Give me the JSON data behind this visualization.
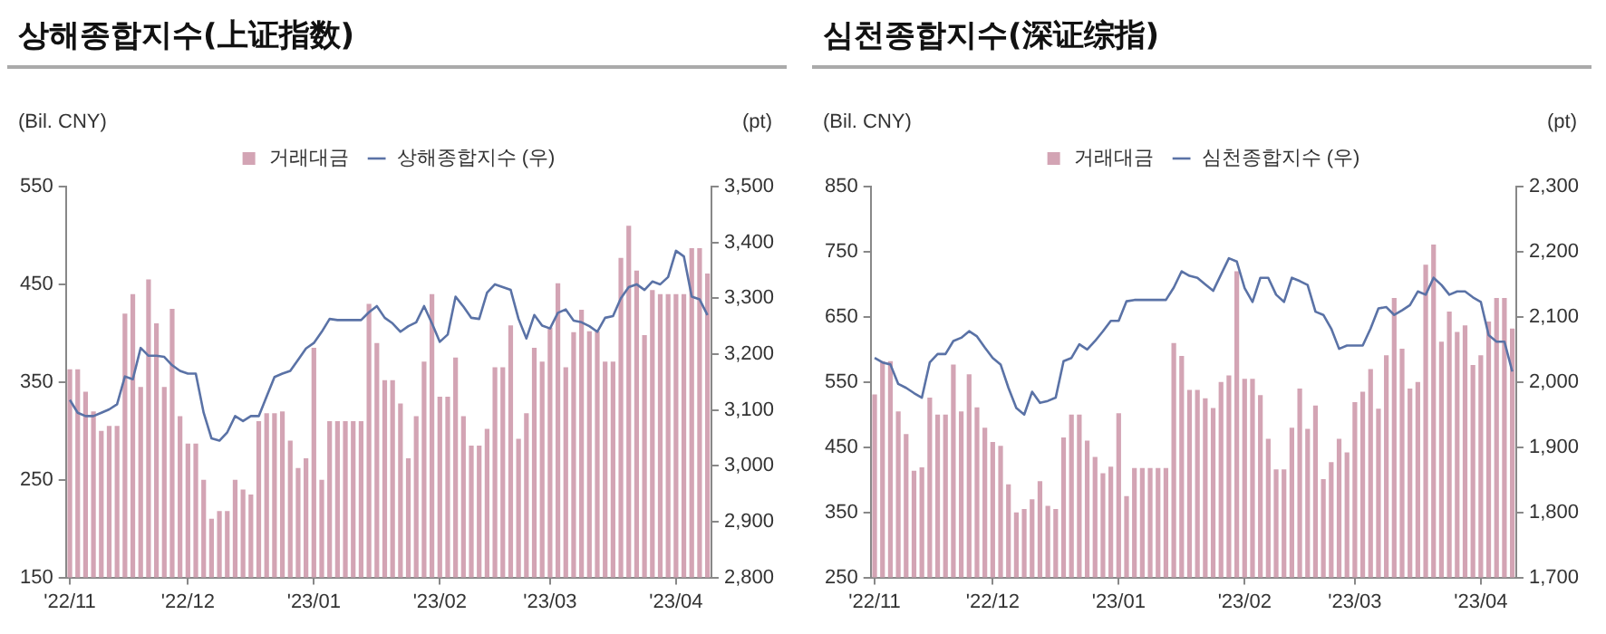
{
  "chart_data": [
    {
      "type": "bar",
      "title": "상해종합지수(上证指数)",
      "ylabel": "(Bil. CNY)",
      "y2label": "(pt)",
      "legend": "top",
      "grid": false,
      "categories": [
        "'22/11",
        null,
        null,
        null,
        null,
        null,
        null,
        null,
        null,
        null,
        null,
        null,
        null,
        null,
        null,
        "'22/12",
        null,
        null,
        null,
        null,
        null,
        null,
        null,
        null,
        null,
        null,
        null,
        null,
        null,
        null,
        null,
        "'23/01",
        null,
        null,
        null,
        null,
        null,
        null,
        null,
        null,
        null,
        null,
        null,
        null,
        null,
        null,
        null,
        "'23/02",
        null,
        null,
        null,
        null,
        null,
        null,
        null,
        null,
        null,
        null,
        null,
        null,
        null,
        "'23/03",
        null,
        null,
        null,
        null,
        null,
        null,
        null,
        null,
        null,
        null,
        null,
        null,
        null,
        null,
        null,
        "'23/04",
        null,
        null,
        null,
        null
      ],
      "ylim": [
        150,
        550
      ],
      "yticks": [
        150,
        250,
        350,
        450,
        550
      ],
      "y2lim": [
        2800,
        3500
      ],
      "y2ticks": [
        {
          "value": 2800,
          "label": "2,800"
        },
        {
          "value": 2900,
          "label": "2,900"
        },
        {
          "value": 3000,
          "label": "3,000"
        },
        {
          "value": 3100,
          "label": "3,100"
        },
        {
          "value": 3200,
          "label": "3,200"
        },
        {
          "value": 3300,
          "label": "3,300"
        },
        {
          "value": 3400,
          "label": "3,400"
        },
        {
          "value": 3500,
          "label": "3,500"
        }
      ],
      "series": [
        {
          "name": "거래대금",
          "color": "#d3a4b4",
          "values": [
            363,
            363,
            340,
            320,
            300,
            305,
            305,
            420,
            440,
            345,
            455,
            410,
            345,
            425,
            315,
            287,
            287,
            250,
            210,
            218,
            218,
            250,
            240,
            235,
            310,
            318,
            318,
            320,
            290,
            262,
            272,
            385,
            250,
            310,
            310,
            310,
            310,
            310,
            430,
            390,
            352,
            352,
            328,
            272,
            315,
            371,
            440,
            335,
            335,
            375,
            315,
            285,
            285,
            302,
            365,
            365,
            408,
            292,
            318,
            385,
            371,
            406,
            451,
            365,
            401,
            424,
            402,
            402,
            371,
            371,
            477,
            510,
            464,
            398,
            444,
            440,
            440,
            440,
            440,
            487,
            487,
            461
          ]
        },
        {
          "name": "상해종합지수 (우)",
          "type": "line",
          "axis": "y2",
          "color": "#5a72a6",
          "values": [
            3118,
            3095,
            3089,
            3089,
            3095,
            3101,
            3110,
            3160,
            3155,
            3211,
            3197,
            3197,
            3195,
            3180,
            3170,
            3165,
            3165,
            3095,
            3049,
            3045,
            3060,
            3089,
            3080,
            3089,
            3089,
            3124,
            3159,
            3165,
            3170,
            3190,
            3210,
            3220,
            3240,
            3263,
            3261,
            3261,
            3261,
            3261,
            3275,
            3286,
            3265,
            3255,
            3240,
            3250,
            3257,
            3286,
            3255,
            3222,
            3235,
            3303,
            3285,
            3265,
            3263,
            3310,
            3325,
            3320,
            3315,
            3263,
            3228,
            3270,
            3251,
            3246,
            3274,
            3280,
            3260,
            3257,
            3250,
            3240,
            3265,
            3268,
            3300,
            3320,
            3325,
            3315,
            3330,
            3325,
            3338,
            3385,
            3375,
            3303,
            3298,
            3270
          ]
        }
      ]
    },
    {
      "type": "bar",
      "title": "심천종합지수(深证综指)",
      "ylabel": "(Bil. CNY)",
      "y2label": "(pt)",
      "legend": "top",
      "grid": false,
      "categories": [
        "'22/11",
        null,
        null,
        null,
        null,
        null,
        null,
        null,
        null,
        null,
        null,
        null,
        null,
        null,
        null,
        "'22/12",
        null,
        null,
        null,
        null,
        null,
        null,
        null,
        null,
        null,
        null,
        null,
        null,
        null,
        null,
        null,
        "'23/01",
        null,
        null,
        null,
        null,
        null,
        null,
        null,
        null,
        null,
        null,
        null,
        null,
        null,
        null,
        null,
        "'23/02",
        null,
        null,
        null,
        null,
        null,
        null,
        null,
        null,
        null,
        null,
        null,
        null,
        null,
        "'23/03",
        null,
        null,
        null,
        null,
        null,
        null,
        null,
        null,
        null,
        null,
        null,
        null,
        null,
        null,
        null,
        "'23/04",
        null,
        null,
        null,
        null
      ],
      "ylim": [
        250,
        850
      ],
      "yticks": [
        250,
        350,
        450,
        550,
        650,
        750,
        850
      ],
      "y2lim": [
        1700,
        2300
      ],
      "y2ticks": [
        {
          "value": 1700,
          "label": "1,700"
        },
        {
          "value": 1800,
          "label": "1,800"
        },
        {
          "value": 1900,
          "label": "1,900"
        },
        {
          "value": 2000,
          "label": "2,000"
        },
        {
          "value": 2100,
          "label": "2,100"
        },
        {
          "value": 2200,
          "label": "2,200"
        },
        {
          "value": 2300,
          "label": "2,300"
        }
      ],
      "series": [
        {
          "name": "거래대금",
          "color": "#d3a4b4",
          "values": [
            531,
            582,
            582,
            505,
            470,
            414,
            419,
            526,
            500,
            500,
            577,
            505,
            562,
            511,
            480,
            458,
            452,
            393,
            350,
            355,
            370,
            398,
            360,
            355,
            465,
            500,
            500,
            460,
            435,
            410,
            420,
            502,
            375,
            418,
            418,
            418,
            418,
            418,
            610,
            590,
            538,
            538,
            525,
            510,
            550,
            560,
            720,
            555,
            555,
            530,
            463,
            416,
            416,
            480,
            540,
            478,
            514,
            401,
            427,
            463,
            442,
            519,
            535,
            570,
            509,
            591,
            679,
            601,
            540,
            550,
            730,
            761,
            612,
            658,
            627,
            637,
            576,
            591,
            643,
            679,
            679,
            632
          ]
        },
        {
          "name": "심천종합지수 (우)",
          "type": "line",
          "axis": "y2",
          "color": "#5a72a6",
          "values": [
            2037,
            2030,
            2027,
            1997,
            1991,
            1983,
            1976,
            2030,
            2043,
            2043,
            2063,
            2068,
            2078,
            2070,
            2053,
            2037,
            2027,
            1991,
            1960,
            1950,
            1985,
            1968,
            1971,
            1976,
            2032,
            2037,
            2058,
            2050,
            2063,
            2078,
            2094,
            2094,
            2124,
            2126,
            2126,
            2126,
            2126,
            2126,
            2145,
            2170,
            2163,
            2160,
            2150,
            2140,
            2165,
            2190,
            2185,
            2144,
            2123,
            2160,
            2160,
            2134,
            2123,
            2160,
            2155,
            2149,
            2108,
            2103,
            2082,
            2051,
            2056,
            2056,
            2056,
            2082,
            2113,
            2115,
            2103,
            2110,
            2118,
            2139,
            2134,
            2160,
            2149,
            2134,
            2139,
            2139,
            2130,
            2123,
            2072,
            2062,
            2062,
            2016
          ]
        }
      ]
    }
  ]
}
